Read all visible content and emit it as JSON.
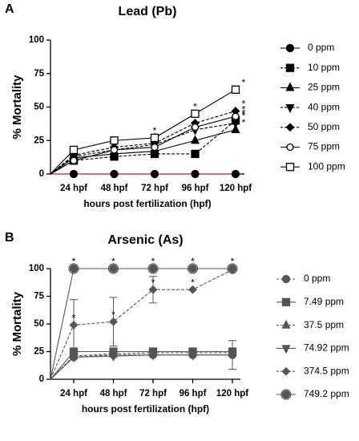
{
  "chart_data": [
    {
      "type": "line",
      "panel": "A",
      "title": "Lead (Pb)",
      "x_label": "hours post fertilization (hpf)",
      "y_label": "% Mortality",
      "categories": [
        null,
        "24 hpf",
        "48 hpf",
        "72 hpf",
        "96 hpf",
        "120 hpf"
      ],
      "ylim": [
        0,
        100
      ],
      "yticks": [
        0,
        25,
        50,
        75,
        100
      ],
      "series": [
        {
          "name": "0 ppm",
          "color": "#000000",
          "line_color": "#d03030",
          "marker": "circle",
          "dash": false,
          "values": [
            0,
            0,
            0,
            0,
            0,
            0
          ],
          "significance": [
            null,
            null,
            null,
            null,
            null,
            null
          ]
        },
        {
          "name": "10 ppm",
          "color": "#000000",
          "marker": "square",
          "dash": true,
          "values": [
            0,
            10,
            13,
            15,
            15,
            40
          ],
          "significance": [
            null,
            null,
            null,
            null,
            null,
            "*"
          ]
        },
        {
          "name": "25 ppm",
          "color": "#000000",
          "marker": "triangle",
          "dash": false,
          "values": [
            0,
            12,
            15,
            17,
            25,
            33
          ],
          "significance": [
            null,
            null,
            null,
            null,
            null,
            "*"
          ]
        },
        {
          "name": "40 ppm",
          "color": "#000000",
          "marker": "triangle-down",
          "dash": true,
          "values": [
            0,
            13,
            18,
            22,
            33,
            38
          ],
          "significance": [
            null,
            null,
            null,
            null,
            null,
            "*"
          ]
        },
        {
          "name": "50 ppm",
          "color": "#000000",
          "marker": "diamond",
          "dash": true,
          "values": [
            0,
            14,
            20,
            23,
            38,
            47
          ],
          "significance": [
            null,
            null,
            null,
            "*",
            "*",
            "*"
          ]
        },
        {
          "name": "75 ppm",
          "color": "#000000",
          "marker": "circle-open",
          "dash": false,
          "values": [
            0,
            10,
            18,
            20,
            35,
            43
          ],
          "significance": [
            null,
            null,
            null,
            null,
            null,
            "*"
          ]
        },
        {
          "name": "100 ppm",
          "color": "#000000",
          "marker": "square-open",
          "dash": false,
          "values": [
            0,
            18,
            25,
            27,
            45,
            63
          ],
          "significance": [
            null,
            null,
            null,
            "*",
            "*",
            "*"
          ]
        }
      ]
    },
    {
      "type": "line",
      "panel": "B",
      "title": "Arsenic (As)",
      "x_label": "hours post fertilization (hpf)",
      "y_label": "% Mortality",
      "categories": [
        null,
        "24 hpf",
        "48 hpf",
        "72 hpf",
        "96 hpf",
        "120 hpf"
      ],
      "ylim": [
        0,
        100
      ],
      "yticks": [
        0,
        25,
        50,
        75,
        100
      ],
      "series": [
        {
          "name": "0 ppm",
          "color": "#555555",
          "marker": "circle",
          "dash": true,
          "values": [
            0,
            20,
            22,
            22,
            22,
            22
          ],
          "errors": [
            null,
            null,
            null,
            null,
            null,
            13
          ],
          "significance": [
            null,
            null,
            null,
            null,
            null,
            null
          ]
        },
        {
          "name": "7.49 ppm",
          "color": "#555555",
          "marker": "square",
          "dash": false,
          "values": [
            0,
            25,
            25,
            25,
            25,
            25
          ],
          "significance": [
            null,
            null,
            null,
            null,
            null,
            null
          ]
        },
        {
          "name": "37.5 ppm",
          "color": "#555555",
          "marker": "triangle",
          "dash": true,
          "values": [
            0,
            21,
            23,
            24,
            24,
            24
          ],
          "significance": [
            null,
            null,
            null,
            null,
            null,
            null
          ]
        },
        {
          "name": "74.92 ppm",
          "color": "#555555",
          "marker": "triangle-down",
          "dash": false,
          "values": [
            0,
            20,
            21,
            22,
            22,
            22
          ],
          "significance": [
            null,
            null,
            null,
            null,
            null,
            null
          ]
        },
        {
          "name": "374.5 ppm",
          "color": "#555555",
          "marker": "diamond",
          "dash": true,
          "values": [
            0,
            49,
            52,
            81,
            81,
            99
          ],
          "errors": [
            null,
            23,
            22,
            12,
            null,
            null
          ],
          "significance": [
            null,
            "*",
            "*",
            "*",
            "*",
            null
          ]
        },
        {
          "name": "749.2 ppm",
          "color": "#555555",
          "marker": "circle-ring",
          "dash": false,
          "values": [
            0,
            100,
            100,
            100,
            100,
            100
          ],
          "significance": [
            null,
            "*",
            "*",
            "*",
            "*",
            "*"
          ]
        }
      ]
    }
  ]
}
